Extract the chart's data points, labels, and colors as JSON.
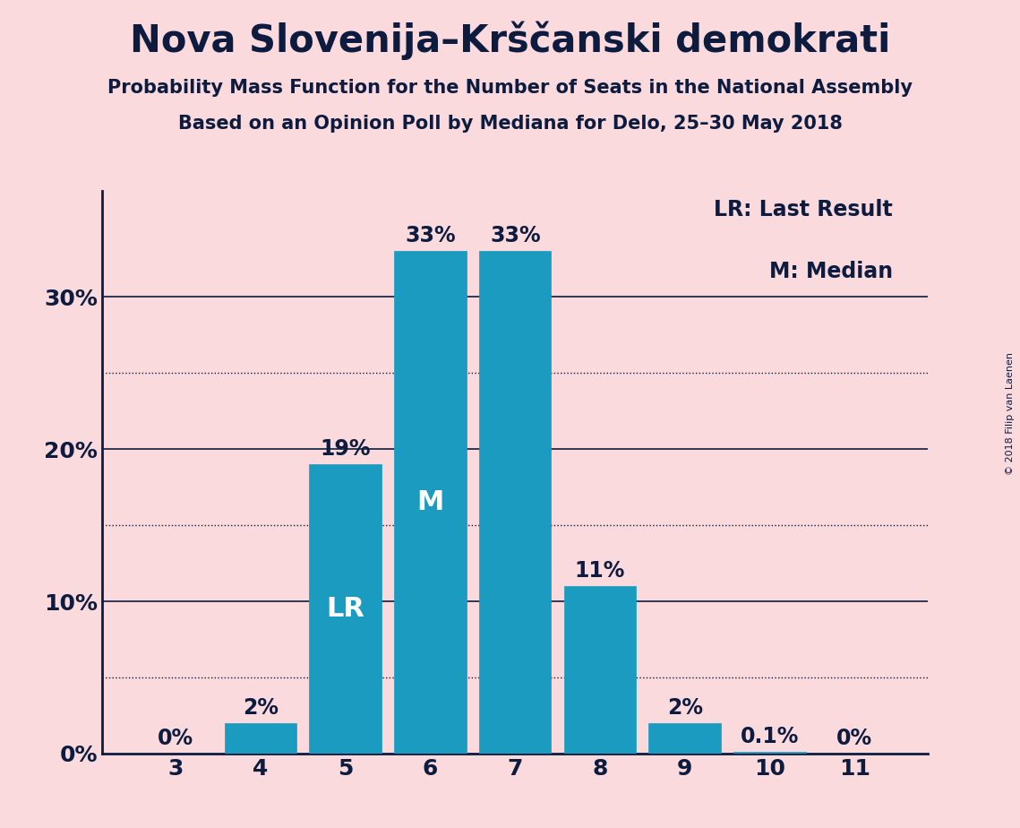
{
  "title": "Nova Slovenija–Krščanski demokrati",
  "subtitle1": "Probability Mass Function for the Number of Seats in the National Assembly",
  "subtitle2": "Based on an Opinion Poll by Mediana for Delo, 25–30 May 2018",
  "copyright": "© 2018 Filip van Laenen",
  "categories": [
    3,
    4,
    5,
    6,
    7,
    8,
    9,
    10,
    11
  ],
  "values": [
    0.0,
    2.0,
    19.0,
    33.0,
    33.0,
    11.0,
    2.0,
    0.1,
    0.0
  ],
  "bar_labels": [
    "0%",
    "2%",
    "19%",
    "33%",
    "33%",
    "11%",
    "2%",
    "0.1%",
    "0%"
  ],
  "bar_color": "#1a9bbf",
  "background_color": "#fadadd",
  "text_color": "#0d1b3e",
  "yticks": [
    0,
    10,
    20,
    30
  ],
  "ylim": [
    0,
    37
  ],
  "lr_bar_index": 2,
  "median_bar_index": 3,
  "lr_label": "LR",
  "median_label": "M",
  "legend_lr": "LR: Last Result",
  "legend_m": "M: Median",
  "title_fontsize": 30,
  "subtitle_fontsize": 15,
  "bar_label_fontsize": 17,
  "axis_fontsize": 18,
  "legend_fontsize": 17
}
